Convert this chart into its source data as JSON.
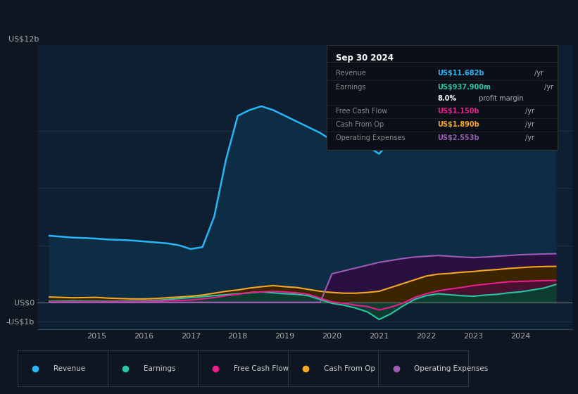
{
  "bg_color": "#0e1621",
  "plot_bg_color": "#0d1f30",
  "grid_color": "#1a3040",
  "title_box": {
    "date": "Sep 30 2024",
    "rows": [
      {
        "label": "Revenue",
        "value": "US$11.682b",
        "unit": "/yr",
        "value_color": "#29b6f6"
      },
      {
        "label": "Earnings",
        "value": "US$937.900m",
        "unit": "/yr",
        "value_color": "#26c6a5"
      },
      {
        "label": "",
        "value": "8.0%",
        "unit": " profit margin",
        "value_color": "#ffffff"
      },
      {
        "label": "Free Cash Flow",
        "value": "US$1.150b",
        "unit": "/yr",
        "value_color": "#e91e8c"
      },
      {
        "label": "Cash From Op",
        "value": "US$1.890b",
        "unit": "/yr",
        "value_color": "#f5a623"
      },
      {
        "label": "Operating Expenses",
        "value": "US$2.553b",
        "unit": "/yr",
        "value_color": "#9c5bb5"
      }
    ]
  },
  "years": [
    2014.0,
    2014.25,
    2014.5,
    2014.75,
    2015.0,
    2015.25,
    2015.5,
    2015.75,
    2016.0,
    2016.25,
    2016.5,
    2016.75,
    2017.0,
    2017.25,
    2017.5,
    2017.75,
    2018.0,
    2018.25,
    2018.5,
    2018.75,
    2019.0,
    2019.25,
    2019.5,
    2019.75,
    2020.0,
    2020.25,
    2020.5,
    2020.75,
    2021.0,
    2021.25,
    2021.5,
    2021.75,
    2022.0,
    2022.25,
    2022.5,
    2022.75,
    2023.0,
    2023.25,
    2023.5,
    2023.75,
    2024.0,
    2024.25,
    2024.5,
    2024.75
  ],
  "revenue": [
    3.5,
    3.45,
    3.4,
    3.38,
    3.35,
    3.3,
    3.28,
    3.25,
    3.2,
    3.15,
    3.1,
    3.0,
    2.8,
    2.9,
    4.5,
    7.5,
    9.8,
    10.1,
    10.3,
    10.1,
    9.8,
    9.5,
    9.2,
    8.9,
    8.5,
    8.4,
    8.3,
    8.2,
    7.8,
    8.5,
    9.8,
    10.3,
    10.5,
    10.6,
    10.4,
    10.3,
    10.4,
    10.6,
    10.9,
    11.3,
    11.5,
    11.6,
    11.65,
    11.682
  ],
  "earnings": [
    0.05,
    0.06,
    0.07,
    0.06,
    0.06,
    0.05,
    0.06,
    0.07,
    0.08,
    0.1,
    0.15,
    0.2,
    0.25,
    0.3,
    0.35,
    0.4,
    0.45,
    0.5,
    0.55,
    0.5,
    0.45,
    0.42,
    0.35,
    0.15,
    -0.05,
    -0.15,
    -0.3,
    -0.5,
    -0.9,
    -0.6,
    -0.2,
    0.15,
    0.35,
    0.45,
    0.4,
    0.35,
    0.32,
    0.38,
    0.42,
    0.5,
    0.55,
    0.65,
    0.75,
    0.938
  ],
  "free_cash_flow": [
    0.02,
    0.03,
    0.03,
    0.03,
    0.03,
    0.03,
    0.04,
    0.04,
    0.05,
    0.06,
    0.08,
    0.1,
    0.12,
    0.18,
    0.25,
    0.35,
    0.42,
    0.52,
    0.55,
    0.58,
    0.55,
    0.5,
    0.42,
    0.22,
    0.02,
    -0.05,
    -0.15,
    -0.22,
    -0.4,
    -0.25,
    -0.05,
    0.25,
    0.45,
    0.6,
    0.7,
    0.78,
    0.88,
    0.95,
    1.02,
    1.08,
    1.1,
    1.12,
    1.14,
    1.15
  ],
  "cash_from_op": [
    0.28,
    0.26,
    0.24,
    0.25,
    0.26,
    0.22,
    0.2,
    0.18,
    0.18,
    0.2,
    0.24,
    0.28,
    0.32,
    0.38,
    0.48,
    0.58,
    0.65,
    0.75,
    0.82,
    0.88,
    0.82,
    0.78,
    0.68,
    0.58,
    0.52,
    0.48,
    0.48,
    0.52,
    0.58,
    0.78,
    0.98,
    1.18,
    1.38,
    1.48,
    1.52,
    1.58,
    1.62,
    1.68,
    1.72,
    1.78,
    1.82,
    1.86,
    1.88,
    1.89
  ],
  "op_expenses": [
    0.0,
    0.0,
    0.0,
    0.0,
    0.0,
    0.0,
    0.0,
    0.0,
    0.0,
    0.0,
    0.0,
    0.0,
    0.0,
    0.0,
    0.0,
    0.0,
    0.0,
    0.0,
    0.0,
    0.0,
    0.0,
    0.0,
    0.0,
    0.0,
    1.5,
    1.65,
    1.8,
    1.95,
    2.1,
    2.2,
    2.3,
    2.38,
    2.42,
    2.46,
    2.42,
    2.38,
    2.35,
    2.38,
    2.42,
    2.46,
    2.5,
    2.52,
    2.54,
    2.553
  ],
  "revenue_color": "#29b6f6",
  "revenue_fill": "#0d2d45",
  "earnings_color": "#26c6a5",
  "earnings_fill": "#0d3d30",
  "fcf_color": "#e91e8c",
  "fcf_fill": "#4a1030",
  "cashop_color": "#f5a623",
  "cashop_fill": "#3a2500",
  "opex_color": "#9c5bb5",
  "opex_fill": "#2a1040",
  "ylim": [
    -1.4,
    13.5
  ],
  "xlim_left": 2013.75,
  "xlim_right": 2025.1,
  "legend_entries": [
    "Revenue",
    "Earnings",
    "Free Cash Flow",
    "Cash From Op",
    "Operating Expenses"
  ],
  "legend_colors": [
    "#29b6f6",
    "#26c6a5",
    "#e91e8c",
    "#f5a623",
    "#9c5bb5"
  ]
}
